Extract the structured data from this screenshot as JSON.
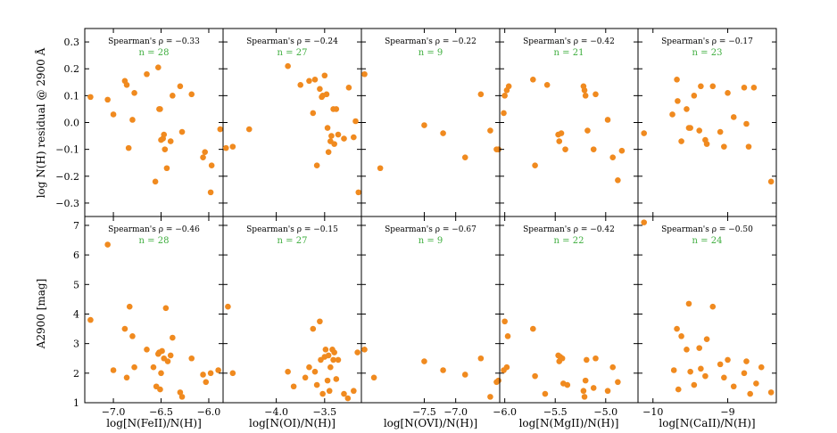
{
  "colors": {
    "point": "#f08a1f",
    "n_text": "#3fae3f"
  },
  "y_labels": {
    "top": "log N(H) residual @ 2900 Å",
    "bottom": "A2900 [mag]"
  },
  "chart_data": [
    {
      "type": "scatter",
      "title": "",
      "xlabel": "log[N(FeII)/N(H)]",
      "ylabel": "log N(H) residual @ 2900 Å",
      "xlim": [
        -7.3,
        -5.85
      ],
      "ylim": [
        -0.35,
        0.35
      ],
      "xticks": [
        "-7.0",
        "-6.5",
        "-6.0"
      ],
      "xtick_values": [
        -7.0,
        -6.5,
        -6.0
      ],
      "yticks": [
        "-0.3",
        "-0.2",
        "-0.1",
        "0.0",
        "0.1",
        "0.2",
        "0.3"
      ],
      "ytick_values": [
        -0.3,
        -0.2,
        -0.1,
        0.0,
        0.1,
        0.2,
        0.3
      ],
      "stat": "Spearman's ρ = −0.33",
      "n": "n = 28",
      "x": [
        -7.24,
        -7.06,
        -7.0,
        -6.88,
        -6.86,
        -6.84,
        -6.8,
        -6.78,
        -6.65,
        -6.56,
        -6.53,
        -6.52,
        -6.51,
        -6.5,
        -6.48,
        -6.47,
        -6.46,
        -6.44,
        -6.4,
        -6.38,
        -6.3,
        -6.28,
        -6.18,
        -6.06,
        -6.04,
        -5.98,
        -5.97,
        -5.88
      ],
      "y": [
        0.095,
        0.085,
        0.03,
        0.155,
        0.14,
        -0.095,
        0.01,
        0.11,
        0.18,
        -0.22,
        0.205,
        0.05,
        0.05,
        -0.065,
        -0.06,
        -0.045,
        -0.1,
        -0.17,
        -0.07,
        0.1,
        0.135,
        -0.035,
        0.105,
        -0.13,
        -0.11,
        -0.26,
        -0.16,
        -0.025
      ]
    },
    {
      "type": "scatter",
      "title": "",
      "xlabel": "log[N(OI)/N(H)]",
      "ylabel": "",
      "xlim": [
        -4.55,
        -3.12
      ],
      "ylim": [
        -0.35,
        0.35
      ],
      "xticks": [
        "-4.0",
        "-3.5"
      ],
      "xtick_values": [
        -4.0,
        -3.5
      ],
      "yticks": [],
      "ytick_values": [],
      "stat": "Spearman's ρ = −0.24",
      "n": "n = 27",
      "x": [
        -4.52,
        -4.45,
        -4.28,
        -3.88,
        -3.75,
        -3.66,
        -3.62,
        -3.6,
        -3.58,
        -3.55,
        -3.53,
        -3.52,
        -3.5,
        -3.48,
        -3.47,
        -3.46,
        -3.44,
        -3.43,
        -3.41,
        -3.4,
        -3.38,
        -3.36,
        -3.3,
        -3.25,
        -3.2,
        -3.18,
        -3.15
      ],
      "y": [
        -0.095,
        -0.09,
        -0.025,
        0.21,
        0.14,
        0.155,
        0.035,
        0.16,
        -0.16,
        0.125,
        0.095,
        0.1,
        0.175,
        0.105,
        -0.02,
        -0.11,
        -0.07,
        -0.05,
        0.05,
        -0.08,
        0.05,
        -0.045,
        -0.06,
        0.13,
        -0.055,
        0.005,
        -0.26
      ]
    },
    {
      "type": "scatter",
      "title": "",
      "xlabel": "log[N(OVI)/N(H)]",
      "ylabel": "",
      "xlim": [
        -8.5,
        -6.3
      ],
      "ylim": [
        -0.35,
        0.35
      ],
      "xticks": [
        "-7.5",
        "-7.0"
      ],
      "xtick_values": [
        -7.5,
        -7.0
      ],
      "yticks": [],
      "ytick_values": [],
      "stat": "Spearman's ρ = −0.22",
      "n": "n = 9",
      "x": [
        -8.45,
        -8.2,
        -7.5,
        -7.2,
        -6.85,
        -6.6,
        -6.45,
        -6.35,
        -6.32
      ],
      "y": [
        0.18,
        -0.17,
        -0.01,
        -0.04,
        -0.13,
        0.105,
        -0.03,
        -0.1,
        -0.1
      ]
    },
    {
      "type": "scatter",
      "title": "",
      "xlabel": "log[N(MgII)/N(H)]",
      "ylabel": "",
      "xlim": [
        -6.05,
        -4.68
      ],
      "ylim": [
        -0.35,
        0.35
      ],
      "xticks": [
        "-6.0",
        "-5.5",
        "-5.0"
      ],
      "xtick_values": [
        -6.0,
        -5.5,
        -5.0
      ],
      "yticks": [],
      "ytick_values": [],
      "stat": "Spearman's ρ = −0.42",
      "n": "n = 21",
      "x": [
        -6.01,
        -6.0,
        -5.98,
        -5.96,
        -5.72,
        -5.7,
        -5.58,
        -5.47,
        -5.46,
        -5.44,
        -5.4,
        -5.22,
        -5.21,
        -5.2,
        -5.18,
        -5.12,
        -5.1,
        -4.98,
        -4.93,
        -4.88,
        -4.84
      ],
      "y": [
        0.035,
        0.1,
        0.12,
        0.135,
        0.16,
        -0.16,
        0.14,
        -0.045,
        -0.07,
        -0.04,
        -0.1,
        0.135,
        0.12,
        0.1,
        -0.03,
        -0.1,
        0.105,
        0.01,
        -0.13,
        -0.215,
        -0.105
      ]
    },
    {
      "type": "scatter",
      "title": "",
      "xlabel": "log[N(CaII)/N(H)]",
      "ylabel": "",
      "xlim": [
        -10.2,
        -8.35
      ],
      "ylim": [
        -0.35,
        0.35
      ],
      "xticks": [
        "-10",
        "-9"
      ],
      "xtick_values": [
        -10,
        -9
      ],
      "yticks": [],
      "ytick_values": [],
      "stat": "Spearman's ρ = −0.17",
      "n": "n = 23",
      "x": [
        -10.12,
        -9.74,
        -9.68,
        -9.67,
        -9.62,
        -9.55,
        -9.52,
        -9.5,
        -9.45,
        -9.38,
        -9.36,
        -9.3,
        -9.28,
        -9.2,
        -9.1,
        -9.05,
        -9.0,
        -8.92,
        -8.78,
        -8.75,
        -8.72,
        -8.65,
        -8.42
      ],
      "y": [
        -0.04,
        0.03,
        0.16,
        0.08,
        -0.07,
        0.05,
        -0.02,
        -0.02,
        0.1,
        -0.03,
        0.135,
        -0.065,
        -0.08,
        0.135,
        -0.035,
        -0.09,
        0.11,
        0.02,
        0.13,
        -0.005,
        -0.09,
        0.13,
        -0.22
      ]
    },
    {
      "type": "scatter",
      "title": "",
      "xlabel": "log[N(FeII)/N(H)]",
      "ylabel": "A2900 [mag]",
      "xlim": [
        -7.3,
        -5.85
      ],
      "ylim": [
        1.0,
        7.3
      ],
      "xticks": [
        "-7.0",
        "-6.5",
        "-6.0"
      ],
      "xtick_values": [
        -7.0,
        -6.5,
        -6.0
      ],
      "yticks": [
        "1",
        "2",
        "3",
        "4",
        "5",
        "6",
        "7"
      ],
      "ytick_values": [
        1,
        2,
        3,
        4,
        5,
        6,
        7
      ],
      "stat": "Spearman's ρ = −0.46",
      "n": "n = 28",
      "x": [
        -7.24,
        -7.06,
        -7.0,
        -6.88,
        -6.86,
        -6.83,
        -6.8,
        -6.78,
        -6.65,
        -6.58,
        -6.55,
        -6.53,
        -6.52,
        -6.51,
        -6.5,
        -6.49,
        -6.47,
        -6.45,
        -6.43,
        -6.4,
        -6.38,
        -6.3,
        -6.28,
        -6.18,
        -6.06,
        -6.03,
        -5.98,
        -5.9
      ],
      "y": [
        3.8,
        6.35,
        2.1,
        3.5,
        1.85,
        4.25,
        3.25,
        2.2,
        2.8,
        2.2,
        1.55,
        2.65,
        2.7,
        1.45,
        2.0,
        2.75,
        2.5,
        4.2,
        2.4,
        2.6,
        3.2,
        1.35,
        1.2,
        2.5,
        1.95,
        1.7,
        2.0,
        2.1
      ]
    },
    {
      "type": "scatter",
      "title": "",
      "xlabel": "log[N(OI)/N(H)]",
      "ylabel": "",
      "xlim": [
        -4.55,
        -3.12
      ],
      "ylim": [
        1.0,
        7.3
      ],
      "xticks": [
        "-4.0",
        "-3.5"
      ],
      "xtick_values": [
        -4.0,
        -3.5
      ],
      "yticks": [],
      "ytick_values": [],
      "stat": "Spearman's ρ = −0.15",
      "n": "n = 27",
      "x": [
        -4.5,
        -4.45,
        -3.88,
        -3.82,
        -3.7,
        -3.66,
        -3.62,
        -3.6,
        -3.58,
        -3.55,
        -3.54,
        -3.52,
        -3.5,
        -3.49,
        -3.47,
        -3.46,
        -3.45,
        -3.44,
        -3.42,
        -3.41,
        -3.4,
        -3.38,
        -3.36,
        -3.3,
        -3.26,
        -3.2,
        -3.16
      ],
      "y": [
        4.25,
        2.0,
        2.05,
        1.55,
        1.85,
        2.2,
        3.5,
        2.05,
        1.6,
        3.75,
        2.45,
        1.3,
        2.55,
        2.8,
        1.75,
        2.6,
        1.4,
        2.2,
        2.8,
        2.45,
        2.7,
        1.8,
        2.45,
        1.3,
        1.15,
        1.4,
        2.7
      ]
    },
    {
      "type": "scatter",
      "title": "",
      "xlabel": "log[N(OVI)/N(H)]",
      "ylabel": "",
      "xlim": [
        -8.5,
        -6.3
      ],
      "ylim": [
        1.0,
        7.3
      ],
      "xticks": [
        "-7.5",
        "-7.0"
      ],
      "xtick_values": [
        -7.5,
        -7.0
      ],
      "yticks": [],
      "ytick_values": [],
      "stat": "Spearman's ρ = −0.67",
      "n": "n = 9",
      "x": [
        -8.45,
        -8.3,
        -7.5,
        -7.2,
        -6.85,
        -6.6,
        -6.45,
        -6.35,
        -6.32
      ],
      "y": [
        2.8,
        1.85,
        2.4,
        2.1,
        1.95,
        2.5,
        1.2,
        1.7,
        1.75
      ]
    },
    {
      "type": "scatter",
      "title": "",
      "xlabel": "log[N(MgII)/N(H)]",
      "ylabel": "",
      "xlim": [
        -6.05,
        -4.68
      ],
      "ylim": [
        1.0,
        7.3
      ],
      "xticks": [
        "-6.0",
        "-5.5",
        "-5.0"
      ],
      "xtick_values": [
        -6.0,
        -5.5,
        -5.0
      ],
      "yticks": [],
      "ytick_values": [],
      "stat": "Spearman's ρ = −0.42",
      "n": "n = 22",
      "x": [
        -6.01,
        -6.0,
        -5.98,
        -5.97,
        -5.72,
        -5.7,
        -5.6,
        -5.47,
        -5.46,
        -5.45,
        -5.43,
        -5.42,
        -5.38,
        -5.22,
        -5.21,
        -5.2,
        -5.19,
        -5.12,
        -5.1,
        -4.98,
        -4.93,
        -4.88
      ],
      "y": [
        2.1,
        3.75,
        2.2,
        3.25,
        3.5,
        1.9,
        1.3,
        2.6,
        2.4,
        2.55,
        2.5,
        1.65,
        1.6,
        1.4,
        1.2,
        1.75,
        2.45,
        1.5,
        2.5,
        1.4,
        2.2,
        1.7
      ]
    },
    {
      "type": "scatter",
      "title": "",
      "xlabel": "log[N(CaII)/N(H)]",
      "ylabel": "",
      "xlim": [
        -10.2,
        -8.35
      ],
      "ylim": [
        1.0,
        7.3
      ],
      "xticks": [
        "-10",
        "-9"
      ],
      "xtick_values": [
        -10,
        -9
      ],
      "yticks": [],
      "ytick_values": [],
      "stat": "Spearman's ρ = −0.50",
      "n": "n = 24",
      "x": [
        -10.12,
        -9.72,
        -9.68,
        -9.66,
        -9.62,
        -9.55,
        -9.52,
        -9.5,
        -9.45,
        -9.38,
        -9.36,
        -9.3,
        -9.28,
        -9.2,
        -9.1,
        -9.05,
        -9.0,
        -8.92,
        -8.78,
        -8.75,
        -8.7,
        -8.62,
        -8.55,
        -8.42
      ],
      "y": [
        7.1,
        2.1,
        3.5,
        1.45,
        3.25,
        2.8,
        4.35,
        2.05,
        1.6,
        2.85,
        2.15,
        1.9,
        3.15,
        4.25,
        2.3,
        1.85,
        2.45,
        1.55,
        2.0,
        2.4,
        1.3,
        1.65,
        2.2,
        1.35
      ]
    }
  ]
}
